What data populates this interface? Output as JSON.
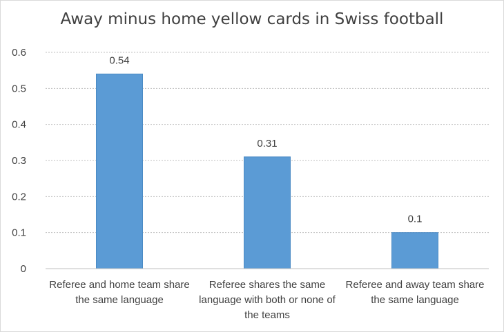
{
  "chart_data": {
    "type": "bar",
    "title": "Away minus home yellow cards in Swiss football",
    "categories": [
      "Referee and home team share the same language",
      "Referee shares the same language with both or none of the teams",
      "Referee and away team share the same language"
    ],
    "values": [
      0.54,
      0.31,
      0.1
    ],
    "data_labels": [
      "0.54",
      "0.31",
      "0.1"
    ],
    "ylim": [
      0,
      0.6
    ],
    "yticks": [
      "0",
      "0.1",
      "0.2",
      "0.3",
      "0.4",
      "0.5",
      "0.6"
    ],
    "grid": true,
    "bar_color": "#5b9bd5",
    "legend": "none"
  }
}
